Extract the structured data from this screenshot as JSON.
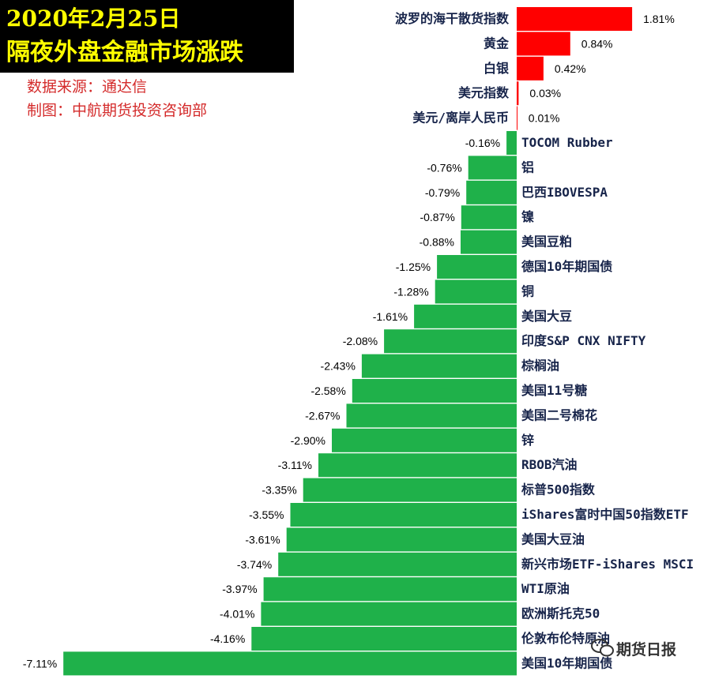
{
  "header": {
    "date": "2020年2月25日",
    "title": "隔夜外盘金融市场涨跌",
    "source": "数据来源：通达信",
    "maker": "制图：中航期货投资咨询部"
  },
  "watermark": "期货日报",
  "colors": {
    "title_bg": "#000000",
    "title_text": "#ffff00",
    "credit_text": "#d42b2b",
    "positive": "#ff0000",
    "negative": "#1fb14a",
    "label_text": "#17244a"
  },
  "chart_data": {
    "type": "bar",
    "orientation": "horizontal",
    "value_format": "percent",
    "categories": [
      "波罗的海干散货指数",
      "黄金",
      "白银",
      "美元指数",
      "美元/离岸人民币",
      "TOCOM Rubber",
      "铝",
      "巴西IBOVESPA",
      "镍",
      "美国豆粕",
      "德国10年期国债",
      "铜",
      "美国大豆",
      "印度S&P CNX NIFTY",
      "棕榈油",
      "美国11号糖",
      "美国二号棉花",
      "锌",
      "RBOB汽油",
      "标普500指数",
      "iShares富时中国50指数ETF",
      "美国大豆油",
      "新兴市场ETF-iShares MSCI",
      "WTI原油",
      "欧洲斯托克50",
      "伦敦布伦特原油",
      "美国10年期国债"
    ],
    "values": [
      1.81,
      0.84,
      0.42,
      0.03,
      0.01,
      -0.16,
      -0.76,
      -0.79,
      -0.87,
      -0.88,
      -1.25,
      -1.28,
      -1.61,
      -2.08,
      -2.43,
      -2.58,
      -2.67,
      -2.9,
      -3.11,
      -3.35,
      -3.55,
      -3.61,
      -3.74,
      -3.97,
      -4.01,
      -4.16,
      -7.11
    ],
    "value_labels": [
      "1.81%",
      "0.84%",
      "0.42%",
      "0.03%",
      "0.01%",
      "-0.16%",
      "-0.76%",
      "-0.79%",
      "-0.87%",
      "-0.88%",
      "-1.25%",
      "-1.28%",
      "-1.61%",
      "-2.08%",
      "-2.43%",
      "-2.58%",
      "-2.67%",
      "-2.90%",
      "-3.11%",
      "-3.35%",
      "-3.55%",
      "-3.61%",
      "-3.74%",
      "-3.97%",
      "-4.01%",
      "-4.16%",
      "-7.11%"
    ],
    "grid": false,
    "legend": "none"
  }
}
